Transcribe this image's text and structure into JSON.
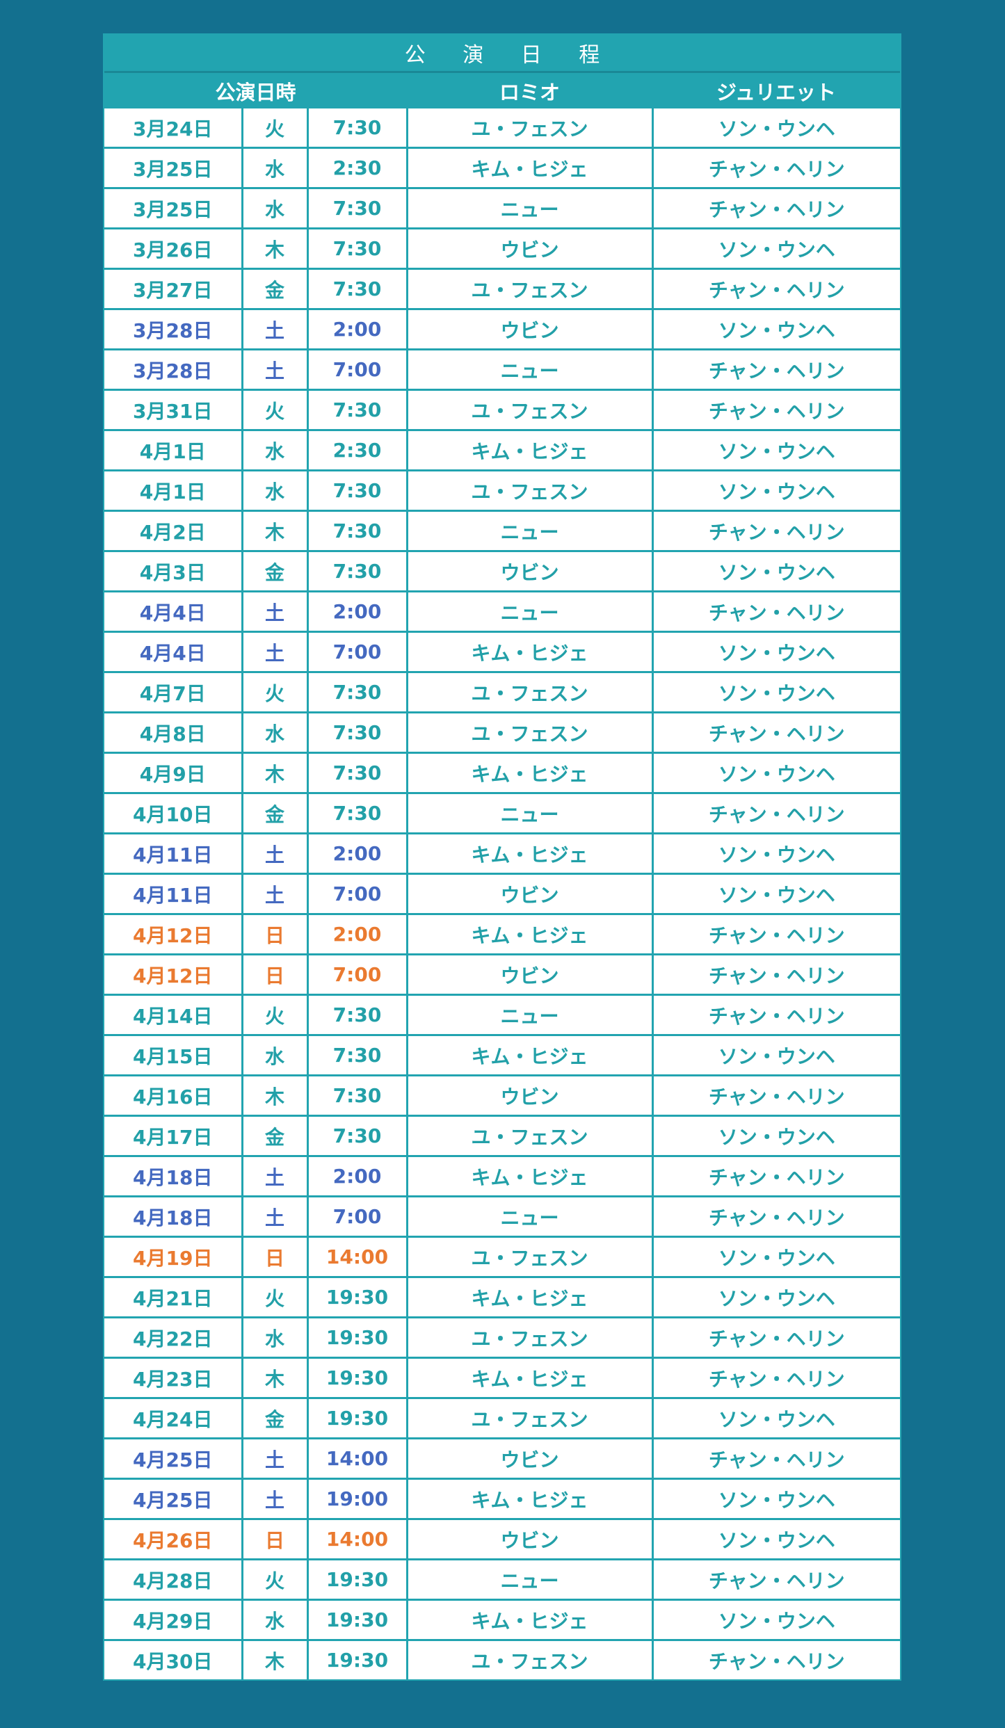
{
  "title": "公 演 日 程",
  "colors": {
    "background": "#13708f",
    "accent": "#22a4b0",
    "weekday_text": "#22a0a8",
    "saturday_text": "#4469c0",
    "sunday_text": "#ea7a30"
  },
  "header": {
    "datetime": "公演日時",
    "romeo": "ロミオ",
    "juliet": "ジュリエット"
  },
  "rows": [
    {
      "date": "3月24日",
      "day": "火",
      "time": "7:30",
      "romeo": "ユ・フェスン",
      "juliet": "ソン・ウンヘ",
      "type": "weekday"
    },
    {
      "date": "3月25日",
      "day": "水",
      "time": "2:30",
      "romeo": "キム・ヒジェ",
      "juliet": "チャン・ヘリン",
      "type": "weekday"
    },
    {
      "date": "3月25日",
      "day": "水",
      "time": "7:30",
      "romeo": "ニュー",
      "juliet": "チャン・ヘリン",
      "type": "weekday"
    },
    {
      "date": "3月26日",
      "day": "木",
      "time": "7:30",
      "romeo": "ウビン",
      "juliet": "ソン・ウンヘ",
      "type": "weekday"
    },
    {
      "date": "3月27日",
      "day": "金",
      "time": "7:30",
      "romeo": "ユ・フェスン",
      "juliet": "チャン・ヘリン",
      "type": "weekday"
    },
    {
      "date": "3月28日",
      "day": "土",
      "time": "2:00",
      "romeo": "ウビン",
      "juliet": "ソン・ウンヘ",
      "type": "sat"
    },
    {
      "date": "3月28日",
      "day": "土",
      "time": "7:00",
      "romeo": "ニュー",
      "juliet": "チャン・ヘリン",
      "type": "sat"
    },
    {
      "date": "3月31日",
      "day": "火",
      "time": "7:30",
      "romeo": "ユ・フェスン",
      "juliet": "チャン・ヘリン",
      "type": "weekday"
    },
    {
      "date": "4月1日",
      "day": "水",
      "time": "2:30",
      "romeo": "キム・ヒジェ",
      "juliet": "ソン・ウンヘ",
      "type": "weekday"
    },
    {
      "date": "4月1日",
      "day": "水",
      "time": "7:30",
      "romeo": "ユ・フェスン",
      "juliet": "ソン・ウンヘ",
      "type": "weekday"
    },
    {
      "date": "4月2日",
      "day": "木",
      "time": "7:30",
      "romeo": "ニュー",
      "juliet": "チャン・ヘリン",
      "type": "weekday"
    },
    {
      "date": "4月3日",
      "day": "金",
      "time": "7:30",
      "romeo": "ウビン",
      "juliet": "ソン・ウンヘ",
      "type": "weekday"
    },
    {
      "date": "4月4日",
      "day": "土",
      "time": "2:00",
      "romeo": "ニュー",
      "juliet": "チャン・ヘリン",
      "type": "sat"
    },
    {
      "date": "4月4日",
      "day": "土",
      "time": "7:00",
      "romeo": "キム・ヒジェ",
      "juliet": "ソン・ウンヘ",
      "type": "sat"
    },
    {
      "date": "4月7日",
      "day": "火",
      "time": "7:30",
      "romeo": "ユ・フェスン",
      "juliet": "ソン・ウンヘ",
      "type": "weekday"
    },
    {
      "date": "4月8日",
      "day": "水",
      "time": "7:30",
      "romeo": "ユ・フェスン",
      "juliet": "チャン・ヘリン",
      "type": "weekday"
    },
    {
      "date": "4月9日",
      "day": "木",
      "time": "7:30",
      "romeo": "キム・ヒジェ",
      "juliet": "ソン・ウンヘ",
      "type": "weekday"
    },
    {
      "date": "4月10日",
      "day": "金",
      "time": "7:30",
      "romeo": "ニュー",
      "juliet": "チャン・ヘリン",
      "type": "weekday"
    },
    {
      "date": "4月11日",
      "day": "土",
      "time": "2:00",
      "romeo": "キム・ヒジェ",
      "juliet": "ソン・ウンヘ",
      "type": "sat"
    },
    {
      "date": "4月11日",
      "day": "土",
      "time": "7:00",
      "romeo": "ウビン",
      "juliet": "ソン・ウンヘ",
      "type": "sat"
    },
    {
      "date": "4月12日",
      "day": "日",
      "time": "2:00",
      "romeo": "キム・ヒジェ",
      "juliet": "チャン・ヘリン",
      "type": "sun"
    },
    {
      "date": "4月12日",
      "day": "日",
      "time": "7:00",
      "romeo": "ウビン",
      "juliet": "チャン・ヘリン",
      "type": "sun"
    },
    {
      "date": "4月14日",
      "day": "火",
      "time": "7:30",
      "romeo": "ニュー",
      "juliet": "チャン・ヘリン",
      "type": "weekday"
    },
    {
      "date": "4月15日",
      "day": "水",
      "time": "7:30",
      "romeo": "キム・ヒジェ",
      "juliet": "ソン・ウンヘ",
      "type": "weekday"
    },
    {
      "date": "4月16日",
      "day": "木",
      "time": "7:30",
      "romeo": "ウビン",
      "juliet": "チャン・ヘリン",
      "type": "weekday"
    },
    {
      "date": "4月17日",
      "day": "金",
      "time": "7:30",
      "romeo": "ユ・フェスン",
      "juliet": "ソン・ウンヘ",
      "type": "weekday"
    },
    {
      "date": "4月18日",
      "day": "土",
      "time": "2:00",
      "romeo": "キム・ヒジェ",
      "juliet": "チャン・ヘリン",
      "type": "sat"
    },
    {
      "date": "4月18日",
      "day": "土",
      "time": "7:00",
      "romeo": "ニュー",
      "juliet": "チャン・ヘリン",
      "type": "sat"
    },
    {
      "date": "4月19日",
      "day": "日",
      "time": "14:00",
      "romeo": "ユ・フェスン",
      "juliet": "ソン・ウンヘ",
      "type": "sun"
    },
    {
      "date": "4月21日",
      "day": "火",
      "time": "19:30",
      "romeo": "キム・ヒジェ",
      "juliet": "ソン・ウンヘ",
      "type": "weekday"
    },
    {
      "date": "4月22日",
      "day": "水",
      "time": "19:30",
      "romeo": "ユ・フェスン",
      "juliet": "チャン・ヘリン",
      "type": "weekday"
    },
    {
      "date": "4月23日",
      "day": "木",
      "time": "19:30",
      "romeo": "キム・ヒジェ",
      "juliet": "チャン・ヘリン",
      "type": "weekday"
    },
    {
      "date": "4月24日",
      "day": "金",
      "time": "19:30",
      "romeo": "ユ・フェスン",
      "juliet": "ソン・ウンヘ",
      "type": "weekday"
    },
    {
      "date": "4月25日",
      "day": "土",
      "time": "14:00",
      "romeo": "ウビン",
      "juliet": "チャン・ヘリン",
      "type": "sat"
    },
    {
      "date": "4月25日",
      "day": "土",
      "time": "19:00",
      "romeo": "キム・ヒジェ",
      "juliet": "ソン・ウンヘ",
      "type": "sat"
    },
    {
      "date": "4月26日",
      "day": "日",
      "time": "14:00",
      "romeo": "ウビン",
      "juliet": "ソン・ウンヘ",
      "type": "sun"
    },
    {
      "date": "4月28日",
      "day": "火",
      "time": "19:30",
      "romeo": "ニュー",
      "juliet": "チャン・ヘリン",
      "type": "weekday"
    },
    {
      "date": "4月29日",
      "day": "水",
      "time": "19:30",
      "romeo": "キム・ヒジェ",
      "juliet": "ソン・ウンヘ",
      "type": "weekday"
    },
    {
      "date": "4月30日",
      "day": "木",
      "time": "19:30",
      "romeo": "ユ・フェスン",
      "juliet": "チャン・ヘリン",
      "type": "weekday"
    }
  ]
}
